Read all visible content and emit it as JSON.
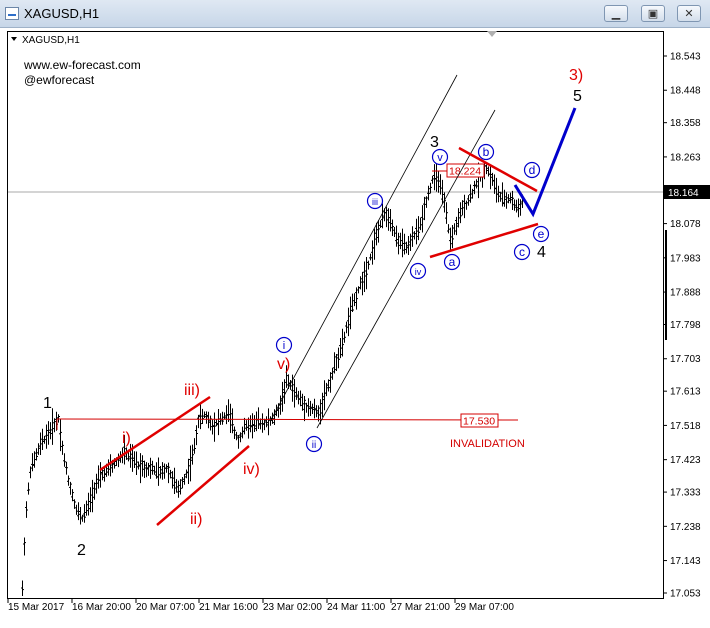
{
  "window": {
    "title": "XAGUSD,H1",
    "buttons": {
      "minimize": "▁",
      "maximize": "▣",
      "close": "✕"
    }
  },
  "chart_header": {
    "symbol": "XAGUSD,H1",
    "watermark_site": "www.ew-forecast.com",
    "watermark_handle": "@ewforecast"
  },
  "chart_data": {
    "type": "candlestick",
    "symbol": "XAGUSD",
    "timeframe": "H1",
    "ylim": [
      17.053,
      18.543
    ],
    "y_ticks": [
      "18.543",
      "18.448",
      "18.358",
      "18.263",
      "18.164",
      "18.078",
      "17.983",
      "17.888",
      "17.798",
      "17.703",
      "17.613",
      "17.518",
      "17.423",
      "17.333",
      "17.238",
      "17.143",
      "17.053"
    ],
    "x_ticks": [
      "15 Mar 2017",
      "16 Mar 20:00",
      "20 Mar 07:00",
      "21 Mar 16:00",
      "23 Mar 02:00",
      "24 Mar 11:00",
      "27 Mar 21:00",
      "29 Mar 07:00"
    ],
    "current_price": "18.164",
    "levels": [
      {
        "label": "18.224",
        "value": 18.224,
        "color": "#e00000"
      },
      {
        "label": "17.530",
        "value": 17.53,
        "color": "#e00000"
      }
    ],
    "annotations": {
      "invalidation": "INVALIDATION",
      "wave_labels": [
        "1",
        "2",
        "3",
        "4",
        "5",
        "i)",
        "ii)",
        "iii)",
        "iv)",
        "v)",
        "3)",
        "i",
        "ii",
        "iii",
        "iv",
        "v",
        "a",
        "b",
        "c",
        "d",
        "e"
      ]
    },
    "colors": {
      "price_bars": "#000000",
      "channel": "#000000",
      "trendlines": "#e00000",
      "projection": "#0000cc",
      "circle_labels": "#0000cc",
      "red_labels": "#e00000"
    }
  }
}
